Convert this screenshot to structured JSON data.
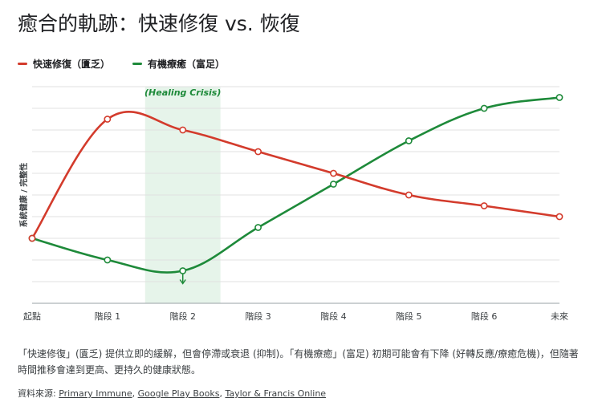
{
  "title": "癒合的軌跡：快速修復 vs. 恢復",
  "caption": "「快速修復」(匱乏) 提供立即的緩解，但會停滯或衰退 (抑制)。「有機療癒」(富足) 初期可能會有下降 (好轉反應/療癒危機)，但隨著時間推移會達到更高、更持久的健康狀態。",
  "sources": {
    "label": "資料來源:",
    "links": [
      "Primary Immune",
      "Google Play Books",
      "Taylor & Francis Online"
    ]
  },
  "colors": {
    "red": "#d33b2c",
    "green": "#1e8a3a",
    "grid": "#e0e0e0",
    "band": "#e6f4ea"
  },
  "chart_data": {
    "type": "line",
    "title": "癒合的軌跡：快速修復 vs. 恢復",
    "xlabel": "",
    "ylabel": "系統健康 / 完整性",
    "categories": [
      "起點",
      "階段 1",
      "階段 2",
      "階段 3",
      "階段 4",
      "階段 5",
      "階段 6",
      "未來"
    ],
    "ylim": [
      0,
      10
    ],
    "series": [
      {
        "name": "快速修復（匱乏）",
        "color": "#d33b2c",
        "values": [
          3,
          8.5,
          8,
          7,
          6,
          5,
          4.5,
          4
        ]
      },
      {
        "name": "有機療癒（富足）",
        "color": "#1e8a3a",
        "values": [
          3,
          2,
          1.5,
          3.5,
          5.5,
          7.5,
          9,
          9.5
        ]
      }
    ],
    "annotation": {
      "label": "(Healing Crisis)",
      "band_from": 1.5,
      "band_to": 2.5,
      "arrow_at": 2
    },
    "legend_position": "top-left"
  }
}
